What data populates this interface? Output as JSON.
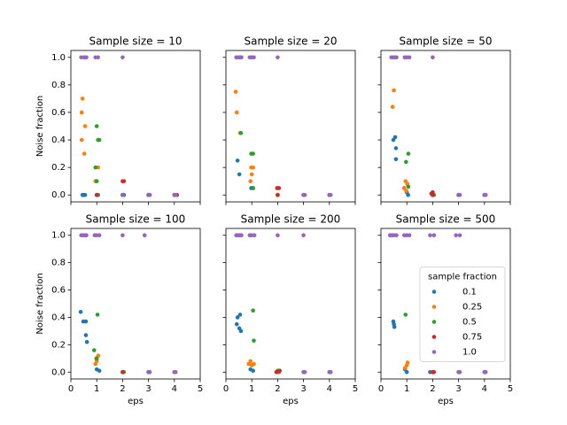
{
  "chart_data": {
    "type": "scatter",
    "xlabel": "eps",
    "ylabel": "Noise fraction",
    "xlim": [
      0,
      5
    ],
    "xticks": [
      0,
      1,
      2,
      3,
      4,
      5
    ],
    "ylim": [
      -0.05,
      1.05
    ],
    "yticks": [
      {
        "value": 0,
        "label": "0.0"
      },
      {
        "value": 0.2,
        "label": "0.2"
      },
      {
        "value": 0.4,
        "label": "0.4"
      },
      {
        "value": 0.6,
        "label": "0.6"
      },
      {
        "value": 0.8,
        "label": "0.8"
      },
      {
        "value": 1,
        "label": "1.0"
      }
    ],
    "legend_title": "sample fraction",
    "legend": "center right",
    "series": [
      {
        "name": "0.1",
        "color": "#1f77b4"
      },
      {
        "name": "0.25",
        "color": "#ff7f0e"
      },
      {
        "name": "0.5",
        "color": "#2ca02c"
      },
      {
        "name": "0.75",
        "color": "#d62728"
      },
      {
        "name": "1.0",
        "color": "#9467bd"
      }
    ],
    "panels": [
      {
        "title": "Sample size = 10",
        "points": [
          {
            "x": [
              0.45,
              0.55,
              0.5,
              1.0,
              1.05,
              2.0,
              2.05,
              3.0,
              3.05,
              4.0
            ],
            "y": [
              0,
              0,
              0,
              0,
              0,
              0,
              0,
              0,
              0,
              0
            ]
          },
          {
            "x": [
              0.45,
              0.42,
              0.55,
              0.42,
              0.52,
              1.05,
              0.95,
              1.0,
              2.0,
              3.0,
              4.0
            ],
            "y": [
              0.7,
              0.6,
              0.5,
              0.4,
              0.3,
              0.2,
              0.1,
              0,
              0,
              0,
              0
            ]
          },
          {
            "x": [
              1.0,
              1.05,
              1.1,
              0.95,
              1.0,
              1.0,
              2.0,
              3.0,
              4.0
            ],
            "y": [
              0.5,
              0.4,
              0.4,
              0.2,
              0.1,
              0,
              0,
              0,
              0
            ]
          },
          {
            "x": [
              2.0,
              2.05,
              1.0,
              2.0,
              3.0,
              4.1
            ],
            "y": [
              0.1,
              0.1,
              0,
              0,
              0,
              0
            ]
          },
          {
            "x": [
              0.4,
              0.5,
              0.55,
              0.6,
              0.95,
              1.05,
              2.0,
              2.0,
              3.0,
              3.05,
              4.0,
              4.05
            ],
            "y": [
              1,
              1,
              1,
              1,
              1,
              1,
              1,
              0,
              0,
              0,
              0,
              0
            ]
          }
        ]
      },
      {
        "title": "Sample size = 20",
        "points": [
          {
            "x": [
              0.45,
              0.52,
              0.98,
              1.05,
              2.0,
              3.0,
              4.0
            ],
            "y": [
              0.25,
              0.15,
              0.05,
              0.05,
              0,
              0,
              0
            ]
          },
          {
            "x": [
              0.38,
              0.42,
              0.55,
              0.98,
              1.05,
              1.0,
              0.95,
              2.0
            ],
            "y": [
              0.75,
              0.6,
              0.45,
              0.2,
              0.2,
              0.15,
              0.1,
              0
            ]
          },
          {
            "x": [
              0.58,
              0.98,
              1.05,
              1.05,
              2.0
            ],
            "y": [
              0.45,
              0.3,
              0.3,
              0.05,
              0
            ]
          },
          {
            "x": [
              1.98,
              2.05,
              2.0,
              3.0,
              4.0
            ],
            "y": [
              0.05,
              0.05,
              0,
              0,
              0
            ]
          },
          {
            "x": [
              0.4,
              0.48,
              0.55,
              0.6,
              0.92,
              1.0,
              1.08,
              2.0,
              3.0,
              3.05,
              4.0,
              4.05
            ],
            "y": [
              1,
              1,
              1,
              1,
              1,
              1,
              1,
              1,
              0,
              0,
              0,
              0
            ]
          }
        ]
      },
      {
        "title": "Sample size = 50",
        "points": [
          {
            "x": [
              0.55,
              0.48,
              0.58,
              0.58,
              0.9,
              1.0,
              1.05,
              2.0,
              3.0,
              4.0
            ],
            "y": [
              0.42,
              0.4,
              0.34,
              0.26,
              0.05,
              0.02,
              0,
              0,
              0,
              0
            ]
          },
          {
            "x": [
              0.5,
              0.45,
              0.95,
              1.02,
              0.9,
              0.98,
              2.0
            ],
            "y": [
              0.76,
              0.64,
              0.1,
              0.08,
              0.05,
              0.03,
              0
            ]
          },
          {
            "x": [
              1.06,
              0.97,
              1.06,
              2.05
            ],
            "y": [
              0.3,
              0.24,
              0.06,
              0
            ]
          },
          {
            "x": [
              2.0,
              1.95,
              2.0,
              3.0,
              4.0
            ],
            "y": [
              0.02,
              0.01,
              0,
              0,
              0
            ]
          },
          {
            "x": [
              0.4,
              0.48,
              0.55,
              0.6,
              0.92,
              1.0,
              1.1,
              2.0,
              3.0,
              3.05,
              4.0,
              4.05
            ],
            "y": [
              1,
              1,
              1,
              1,
              1,
              1,
              1,
              1,
              0,
              0,
              0,
              0
            ]
          }
        ]
      },
      {
        "title": "Sample size = 100",
        "points": [
          {
            "x": [
              0.38,
              0.48,
              0.58,
              0.58,
              0.62,
              1.0,
              1.1,
              2.0,
              3.0,
              4.0
            ],
            "y": [
              0.44,
              0.37,
              0.37,
              0.27,
              0.22,
              0.02,
              0.01,
              0,
              0,
              0
            ]
          },
          {
            "x": [
              1.06,
              0.98,
              1.0,
              0.95,
              2.0
            ],
            "y": [
              0.12,
              0.1,
              0.08,
              0.06,
              0
            ]
          },
          {
            "x": [
              1.03,
              0.9,
              1.0,
              2.05
            ],
            "y": [
              0.42,
              0.16,
              0.1,
              0
            ]
          },
          {
            "x": [
              2.0,
              3.0
            ],
            "y": [
              0,
              0
            ]
          },
          {
            "x": [
              0.4,
              0.48,
              0.55,
              0.6,
              0.92,
              1.0,
              1.1,
              2.0,
              2.85,
              3.0,
              3.05,
              4.0,
              4.05
            ],
            "y": [
              1,
              1,
              1,
              1,
              1,
              1,
              1,
              1,
              1,
              0,
              0,
              0,
              0
            ]
          }
        ]
      },
      {
        "title": "Sample size = 200",
        "points": [
          {
            "x": [
              0.55,
              0.45,
              0.42,
              0.52,
              0.58,
              0.95,
              1.05,
              2.0,
              3.0,
              4.0
            ],
            "y": [
              0.42,
              0.4,
              0.35,
              0.32,
              0.3,
              0.02,
              0.01,
              0,
              0,
              0
            ]
          },
          {
            "x": [
              0.95,
              0.88,
              1.08,
              1.0,
              2.0
            ],
            "y": [
              0.08,
              0.06,
              0.06,
              0.05,
              0
            ]
          },
          {
            "x": [
              1.05,
              1.08,
              2.0,
              2.05
            ],
            "y": [
              0.45,
              0.23,
              0.01,
              0
            ]
          },
          {
            "x": [
              2.08,
              1.95
            ],
            "y": [
              0.01,
              0
            ]
          },
          {
            "x": [
              0.4,
              0.48,
              0.55,
              0.6,
              0.92,
              1.0,
              1.1,
              2.0,
              3.0,
              3.0,
              3.05,
              4.0,
              4.05
            ],
            "y": [
              1,
              1,
              1,
              1,
              1,
              1,
              1,
              1,
              1,
              0,
              0,
              0,
              0
            ]
          }
        ]
      },
      {
        "title": "Sample size = 500",
        "points": [
          {
            "x": [
              0.48,
              0.5,
              0.52,
              0.93,
              1.0,
              1.9,
              3.0,
              4.0
            ],
            "y": [
              0.37,
              0.35,
              0.33,
              0.02,
              0,
              0,
              0,
              0
            ]
          },
          {
            "x": [
              1.03,
              1.0,
              0.93,
              2.0
            ],
            "y": [
              0.07,
              0.05,
              0.03,
              0
            ]
          },
          {
            "x": [
              0.95,
              2.0
            ],
            "y": [
              0.42,
              0
            ]
          },
          {
            "x": [
              2.0,
              2.05
            ],
            "y": [
              0,
              0
            ]
          },
          {
            "x": [
              0.35,
              0.42,
              0.5,
              0.6,
              0.9,
              1.0,
              1.1,
              1.9,
              2.05,
              2.9,
              3.05,
              3.0,
              3.05,
              4.0,
              4.05
            ],
            "y": [
              1,
              1,
              1,
              1,
              1,
              1,
              1,
              1,
              1,
              1,
              1,
              0,
              0,
              0,
              0
            ]
          }
        ]
      }
    ]
  }
}
